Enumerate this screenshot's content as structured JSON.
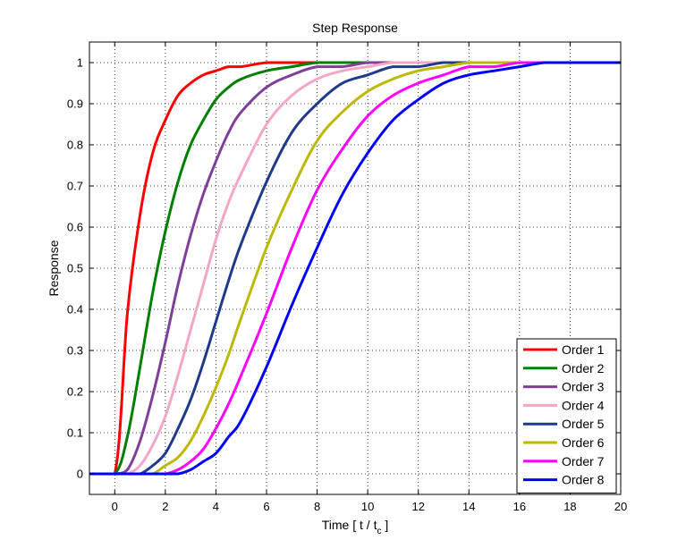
{
  "chart_data": {
    "type": "line",
    "title": "Step Response",
    "ylabel": "Response",
    "xlabel": {
      "text": "Time  [ t / t",
      "subscript": "c",
      "suffix": " ]"
    },
    "xlim": [
      -1,
      20
    ],
    "ylim": [
      -0.05,
      1.05
    ],
    "xticks": [
      0,
      2,
      4,
      6,
      8,
      10,
      12,
      14,
      16,
      18,
      20
    ],
    "xtick_labels": [
      "0",
      "2",
      "4",
      "6",
      "8",
      "10",
      "12",
      "14",
      "16",
      "18",
      "20"
    ],
    "yticks": [
      0,
      0.1,
      0.2,
      0.3,
      0.4,
      0.5,
      0.6,
      0.7,
      0.8,
      0.9,
      1
    ],
    "ytick_labels": [
      "0",
      "0.1",
      "0.2",
      "0.3",
      "0.4",
      "0.5",
      "0.6",
      "0.7",
      "0.8",
      "0.9",
      "1"
    ],
    "grid": true,
    "legend_position": "bottom-right",
    "x": [
      -1,
      0,
      0.5,
      1,
      1.5,
      2,
      2.5,
      3,
      3.5,
      4,
      4.5,
      5,
      6,
      7,
      8,
      9,
      10,
      11,
      12,
      13,
      14,
      15,
      16,
      17,
      18,
      19,
      20
    ],
    "series": [
      {
        "name": "Order 1",
        "color": "#ff0000",
        "values": [
          0,
          0,
          0.39,
          0.63,
          0.78,
          0.86,
          0.92,
          0.95,
          0.97,
          0.98,
          0.99,
          0.99,
          1,
          1,
          1,
          1,
          1,
          1,
          1,
          1,
          1,
          1,
          1,
          1,
          1,
          1,
          1
        ]
      },
      {
        "name": "Order 2",
        "color": "#008000",
        "values": [
          0,
          0,
          0.09,
          0.26,
          0.44,
          0.59,
          0.71,
          0.8,
          0.86,
          0.91,
          0.94,
          0.96,
          0.98,
          0.99,
          1,
          1,
          1,
          1,
          1,
          1,
          1,
          1,
          1,
          1,
          1,
          1,
          1
        ]
      },
      {
        "name": "Order 3",
        "color": "#7f3f98",
        "values": [
          0,
          0,
          0.01,
          0.08,
          0.19,
          0.32,
          0.46,
          0.58,
          0.68,
          0.76,
          0.83,
          0.88,
          0.94,
          0.97,
          0.99,
          0.99,
          1,
          1,
          1,
          1,
          1,
          1,
          1,
          1,
          1,
          1,
          1
        ]
      },
      {
        "name": "Order 4",
        "color": "#f4a6c8",
        "values": [
          0,
          0,
          0,
          0.02,
          0.07,
          0.14,
          0.24,
          0.35,
          0.46,
          0.57,
          0.66,
          0.73,
          0.85,
          0.92,
          0.96,
          0.98,
          0.99,
          1,
          1,
          1,
          1,
          1,
          1,
          1,
          1,
          1,
          1
        ]
      },
      {
        "name": "Order 5",
        "color": "#1f3a8a",
        "values": [
          0,
          0,
          0,
          0,
          0.02,
          0.05,
          0.11,
          0.18,
          0.27,
          0.37,
          0.47,
          0.56,
          0.71,
          0.83,
          0.9,
          0.95,
          0.97,
          0.99,
          0.99,
          1,
          1,
          1,
          1,
          1,
          1,
          1,
          1
        ]
      },
      {
        "name": "Order 6",
        "color": "#bdb800",
        "values": [
          0,
          0,
          0,
          0,
          0,
          0.02,
          0.04,
          0.08,
          0.14,
          0.21,
          0.29,
          0.38,
          0.55,
          0.69,
          0.81,
          0.88,
          0.93,
          0.96,
          0.98,
          0.99,
          1,
          1,
          1,
          1,
          1,
          1,
          1
        ]
      },
      {
        "name": "Order 7",
        "color": "#ff00ff",
        "values": [
          0,
          0,
          0,
          0,
          0,
          0,
          0.01,
          0.03,
          0.06,
          0.11,
          0.17,
          0.24,
          0.39,
          0.55,
          0.69,
          0.79,
          0.87,
          0.92,
          0.95,
          0.97,
          0.99,
          0.99,
          1,
          1,
          1,
          1,
          1
        ]
      },
      {
        "name": "Order 8",
        "color": "#0000ff",
        "values": [
          0,
          0,
          0,
          0,
          0,
          0,
          0,
          0.01,
          0.03,
          0.05,
          0.09,
          0.13,
          0.26,
          0.41,
          0.55,
          0.68,
          0.78,
          0.86,
          0.91,
          0.95,
          0.97,
          0.98,
          0.99,
          1,
          1,
          1,
          1
        ]
      }
    ]
  }
}
